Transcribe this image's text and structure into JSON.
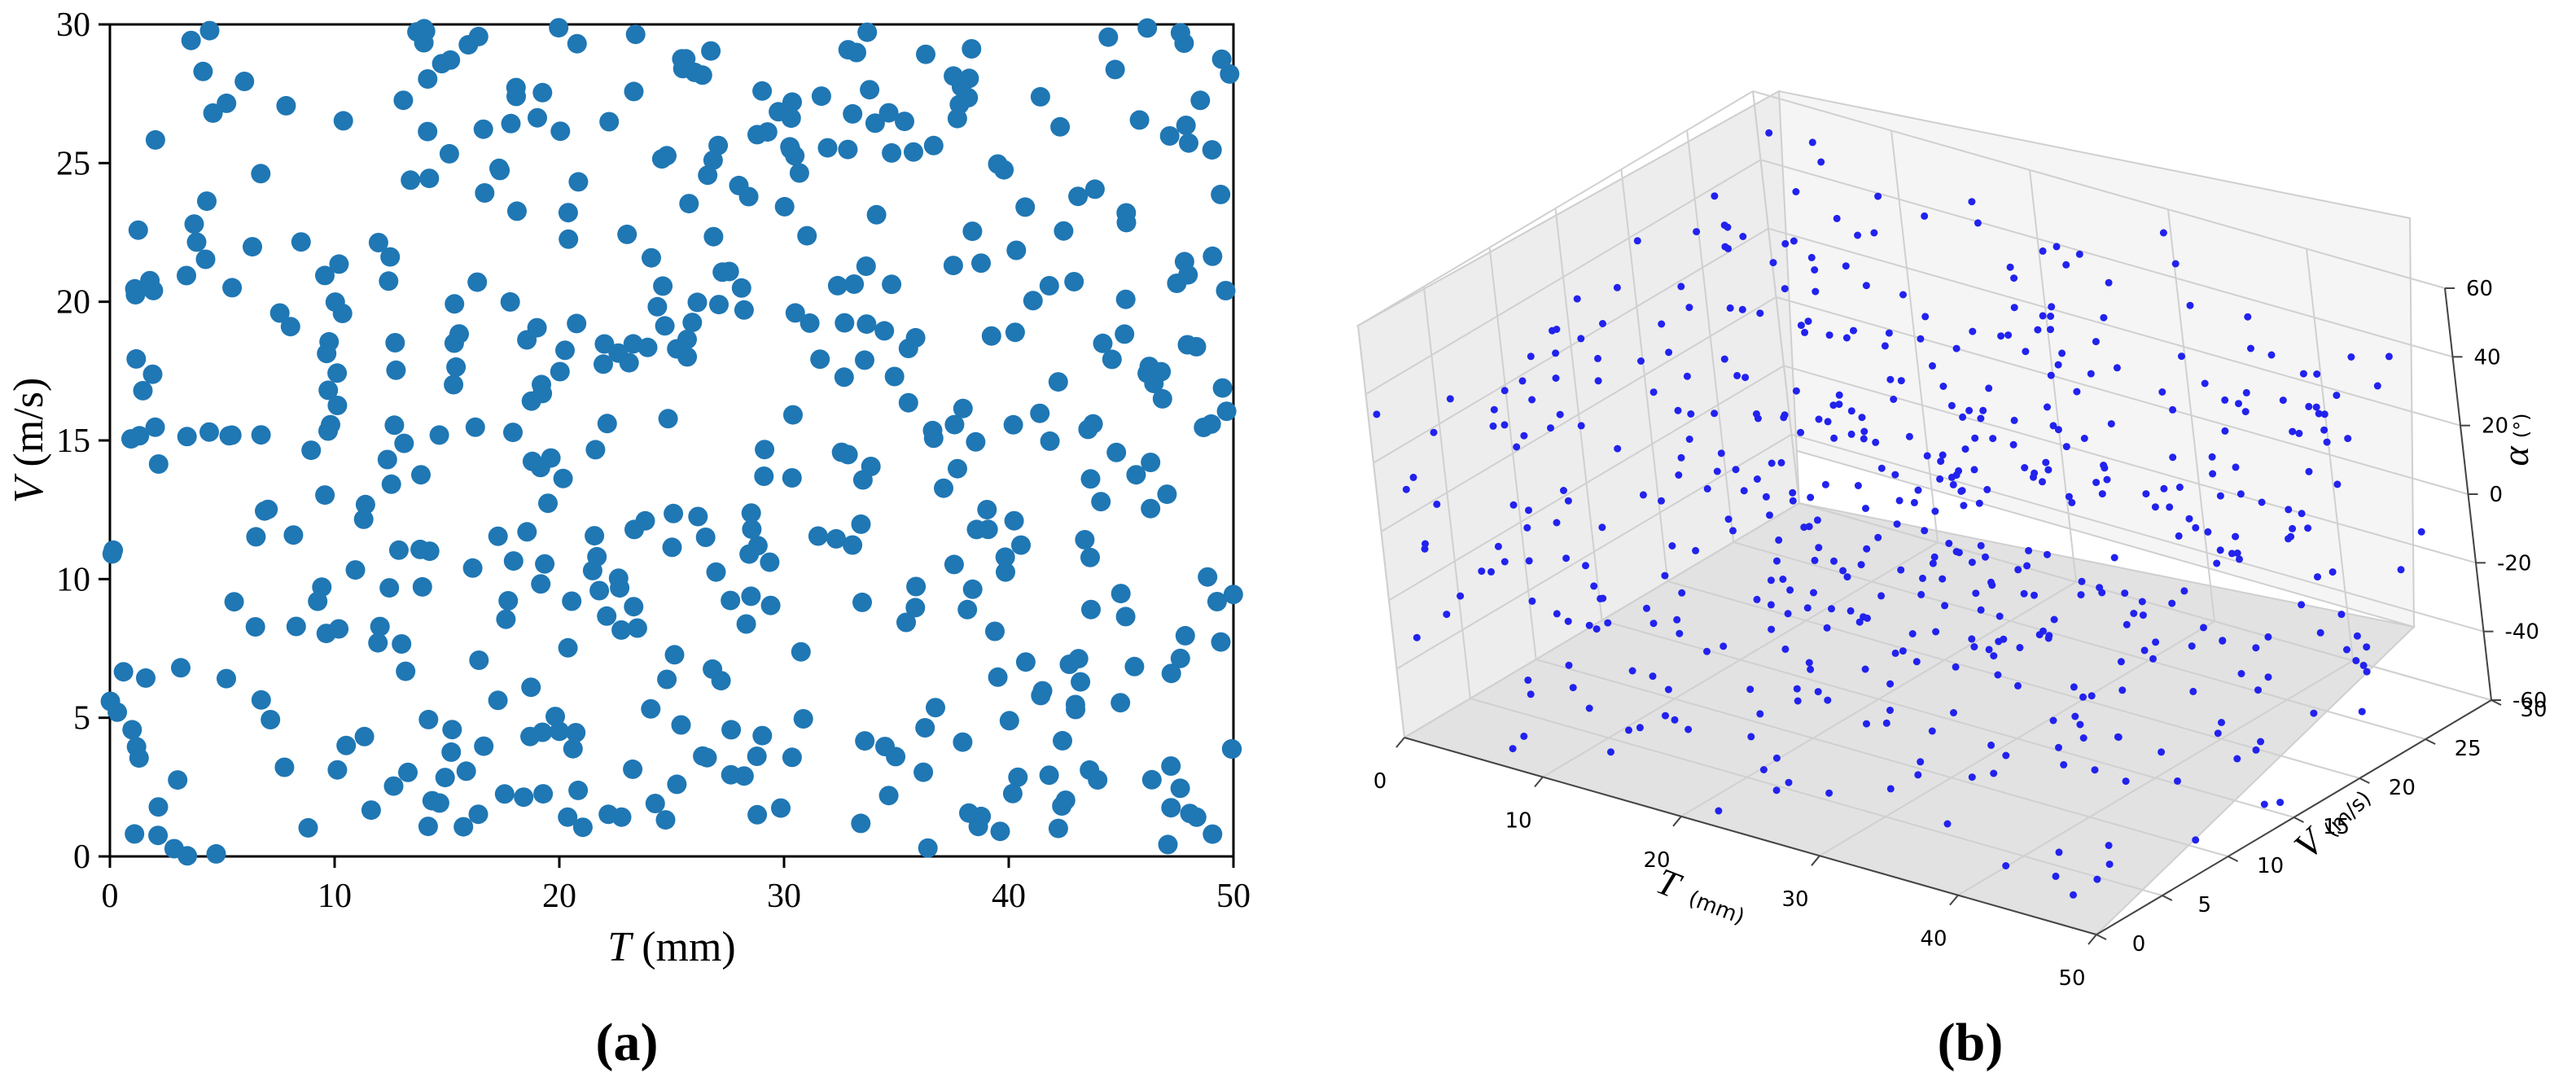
{
  "chart_data": [
    {
      "type": "scatter",
      "panel_label": "(a)",
      "xlabel_var": "T",
      "xlabel_unit": " (mm)",
      "ylabel_var": "V",
      "ylabel_unit": " (m/s)",
      "xlim": [
        0,
        50
      ],
      "ylim": [
        0,
        30
      ],
      "xticks": [
        "0",
        "10",
        "20",
        "30",
        "40",
        "50"
      ],
      "yticks": [
        "0",
        "5",
        "10",
        "15",
        "20",
        "25",
        "30"
      ],
      "grid": false,
      "marker_color": "#1f77b4",
      "n_points": 500,
      "seed": 11
    },
    {
      "type": "scatter3d",
      "panel_label": "(b)",
      "xlabel_var": "T",
      "xlabel_unit": "(mm)",
      "ylabel_var": "V",
      "ylabel_unit": "(m/s)",
      "zlabel_var": "α",
      "zlabel_unit": "(°)",
      "xlim": [
        0,
        50
      ],
      "ylim": [
        0,
        30
      ],
      "zlim": [
        -60,
        60
      ],
      "xticks": [
        "0",
        "10",
        "20",
        "30",
        "40",
        "50"
      ],
      "yticks": [
        "0",
        "5",
        "10",
        "15",
        "20",
        "25",
        "30"
      ],
      "zticks": [
        "-60",
        "-40",
        "-20",
        "0",
        "20",
        "40",
        "60"
      ],
      "grid": true,
      "marker_color": "#2222ee",
      "n_points": 500,
      "seed": 29
    }
  ]
}
